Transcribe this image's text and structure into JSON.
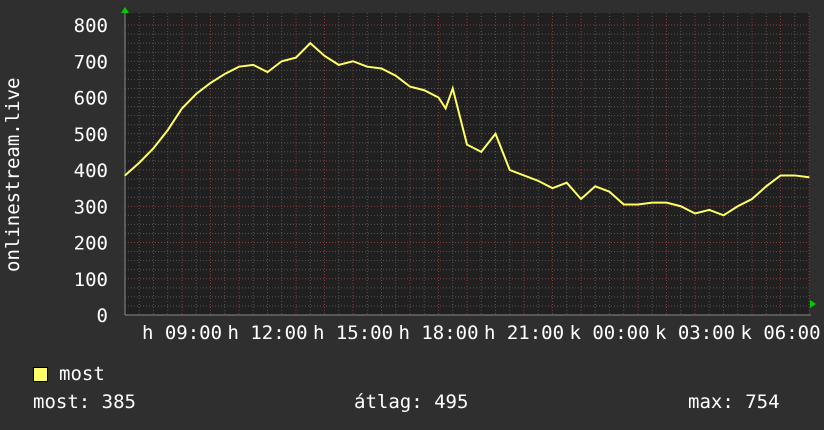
{
  "chart_data": {
    "type": "line",
    "title": "",
    "ylabel": "onlinestream.live",
    "xlabel": "",
    "ylim": [
      0,
      800
    ],
    "yticks": [
      "0",
      "100",
      "200",
      "300",
      "400",
      "500",
      "600",
      "700",
      "800"
    ],
    "x_range": [
      "07:00",
      "07:00 (+1 day)"
    ],
    "xtick_labels": [
      "h 09:00",
      "h 12:00",
      "h 15:00",
      "h 18:00",
      "h 21:00",
      "k 00:00",
      "k 03:00",
      "k 06:00"
    ],
    "grid": true,
    "series": [
      {
        "name": "most",
        "color": "#ffff66",
        "x": [
          "07:00",
          "07:30",
          "08:00",
          "08:30",
          "09:00",
          "09:30",
          "10:00",
          "10:30",
          "11:00",
          "11:30",
          "12:00",
          "12:30",
          "13:00",
          "13:30",
          "14:00",
          "14:30",
          "15:00",
          "15:30",
          "16:00",
          "16:30",
          "17:00",
          "17:30",
          "18:00",
          "18:15",
          "18:30",
          "19:00",
          "19:30",
          "20:00",
          "20:30",
          "21:00",
          "21:30",
          "22:00",
          "22:30",
          "23:00",
          "23:30",
          "00:00",
          "00:30",
          "01:00",
          "01:30",
          "02:00",
          "02:30",
          "03:00",
          "03:30",
          "04:00",
          "04:30",
          "05:00",
          "05:30",
          "06:00",
          "06:30",
          "07:00"
        ],
        "values": [
          385,
          420,
          460,
          510,
          570,
          610,
          640,
          665,
          685,
          690,
          670,
          700,
          710,
          750,
          715,
          690,
          700,
          685,
          680,
          660,
          630,
          620,
          600,
          570,
          625,
          470,
          450,
          500,
          400,
          385,
          370,
          350,
          365,
          320,
          355,
          340,
          305,
          305,
          310,
          310,
          300,
          280,
          290,
          275,
          300,
          320,
          355,
          385,
          385,
          380
        ]
      }
    ]
  },
  "legend": {
    "label": "most",
    "color": "#ffff66"
  },
  "stats": {
    "current": "most: 385",
    "average": "átlag: 495",
    "max": "max: 754"
  },
  "colors": {
    "background": "#2f2f2f",
    "plot_background": "#202020",
    "major_grid": "#8a3a3a",
    "minor_grid": "#555555",
    "arrow": "#00cc00"
  }
}
